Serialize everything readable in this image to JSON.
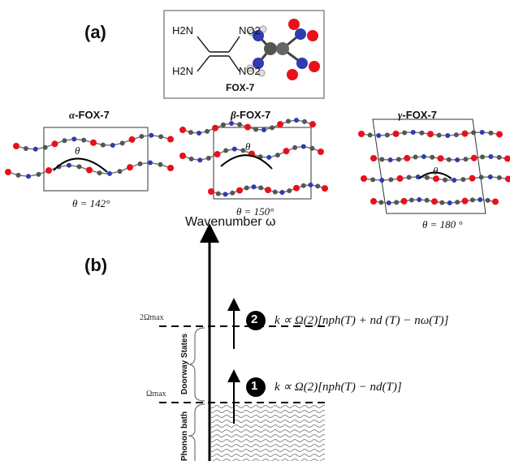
{
  "panel_a": {
    "label": "(a)",
    "molecule": {
      "name": "FOX-7",
      "groups": [
        "H2N",
        "H2N",
        "NO2",
        "NO2"
      ]
    },
    "phases": [
      {
        "greek": "α",
        "name": "-FOX-7",
        "theta_label": "θ",
        "angle_text": "θ = 142°"
      },
      {
        "greek": "β",
        "name": "-FOX-7",
        "theta_label": "θ",
        "angle_text": "θ = 150°"
      },
      {
        "greek": "γ",
        "name": "-FOX-7",
        "theta_label": "θ",
        "angle_text": "θ = 180 °"
      }
    ]
  },
  "panel_b": {
    "label": "(b)",
    "axis_title": "Wavenumber ω",
    "levels": {
      "upper": "2Ωmax",
      "lower": "Ωmax"
    },
    "regions": {
      "doorway": "Doorway States",
      "bath": "Phonon bath"
    },
    "steps": [
      {
        "number": "1",
        "equation": "k ∝ Ω(2)[nph(T) − nd(T)]"
      },
      {
        "number": "2",
        "equation": "k ∝ Ω(2)[nph(T) + nd (T) − nω(T)]"
      }
    ]
  },
  "colors": {
    "oxygen": "#e8101a",
    "nitrogen": "#2f3bb0",
    "carbon": "#555555",
    "hydrogen": "#e6e6e6"
  }
}
